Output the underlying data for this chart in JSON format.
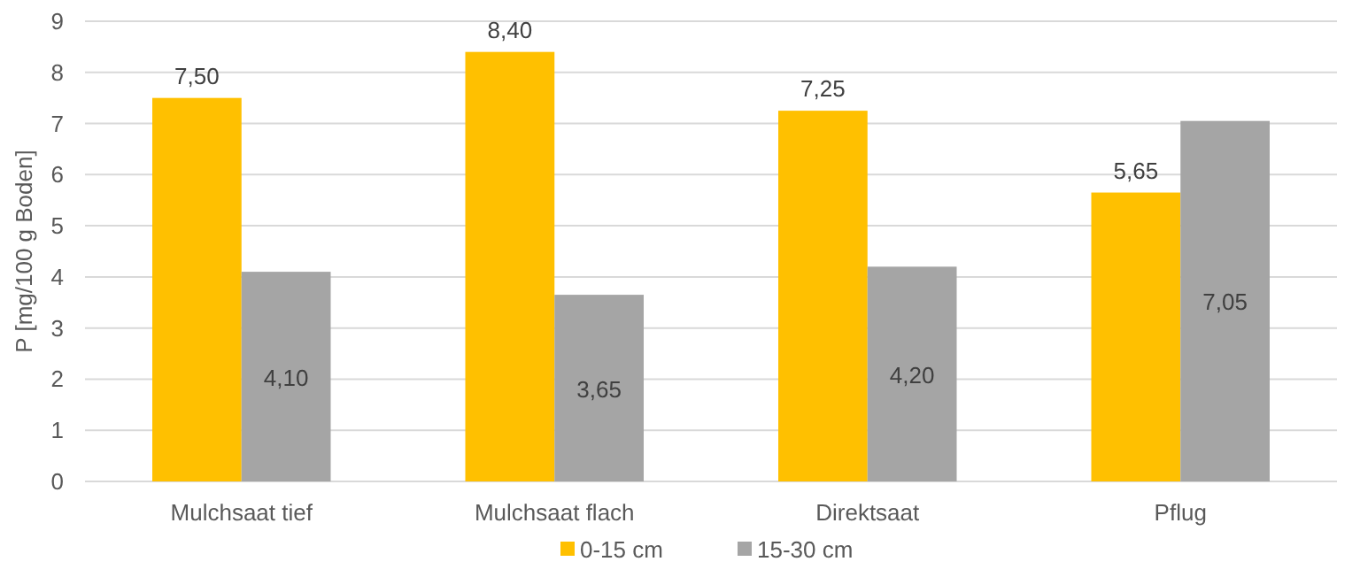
{
  "chart_data": {
    "type": "bar",
    "ylabel": "P [mg/100 g Boden]",
    "categories": [
      "Mulchsaat tief",
      "Mulchsaat flach",
      "Direktsaat",
      "Pflug"
    ],
    "series": [
      {
        "name": "0-15 cm",
        "color": "#ffc000",
        "values": [
          7.5,
          8.4,
          7.25,
          5.65
        ],
        "value_labels": [
          "7,50",
          "8,40",
          "7,25",
          "5,65"
        ]
      },
      {
        "name": "15-30 cm",
        "color": "#a5a5a5",
        "values": [
          4.1,
          3.65,
          4.2,
          7.05
        ],
        "value_labels": [
          "4,10",
          "3,65",
          "4,20",
          "7,05"
        ]
      }
    ],
    "ylim": [
      0,
      9
    ],
    "yticks": [
      0,
      1,
      2,
      3,
      4,
      5,
      6,
      7,
      8,
      9
    ],
    "grid": "y",
    "legend": "bottom"
  }
}
